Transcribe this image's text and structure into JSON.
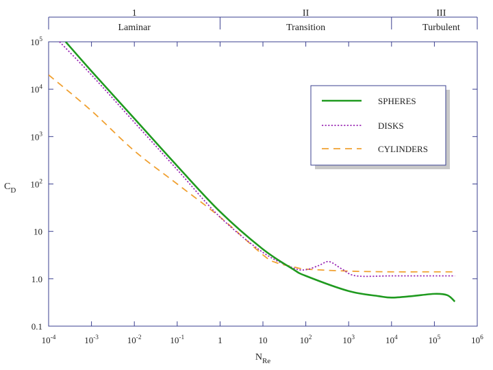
{
  "chart_data": {
    "type": "line",
    "x_scale": "log",
    "y_scale": "log",
    "xlabel": {
      "main": "N",
      "sub": "Re"
    },
    "ylabel": {
      "main": "C",
      "sub": "D"
    },
    "xlim": [
      0.0001,
      1000000
    ],
    "ylim": [
      0.1,
      100000
    ],
    "x_ticks": [
      {
        "base": "10",
        "sup": "-4"
      },
      {
        "base": "10",
        "sup": "-3"
      },
      {
        "base": "10",
        "sup": "-2"
      },
      {
        "base": "10",
        "sup": "-1"
      },
      {
        "base": "1",
        "sup": ""
      },
      {
        "base": "10",
        "sup": ""
      },
      {
        "base": "10",
        "sup": "2"
      },
      {
        "base": "10",
        "sup": "3"
      },
      {
        "base": "10",
        "sup": "4"
      },
      {
        "base": "10",
        "sup": "5"
      },
      {
        "base": "10",
        "sup": "6"
      }
    ],
    "y_ticks": [
      {
        "base": "0.1",
        "sup": ""
      },
      {
        "base": "1.0",
        "sup": ""
      },
      {
        "base": "10",
        "sup": ""
      },
      {
        "base": "10",
        "sup": "2"
      },
      {
        "base": "10",
        "sup": "3"
      },
      {
        "base": "10",
        "sup": "4"
      },
      {
        "base": "10",
        "sup": "5"
      }
    ],
    "regions": [
      {
        "numeral": "1",
        "name": "Laminar",
        "from": 0.0001,
        "to": 1
      },
      {
        "numeral": "II",
        "name": "Transition",
        "from": 1,
        "to": 10000
      },
      {
        "numeral": "III",
        "name": "Turbulent",
        "from": 10000,
        "to": 1000000
      }
    ],
    "legend_position": "top-right",
    "series": [
      {
        "name": "SPHERES",
        "color": "#1f9a1f",
        "style": "solid",
        "points": [
          [
            0.00025,
            100000
          ],
          [
            0.001,
            24000
          ],
          [
            0.01,
            2400
          ],
          [
            0.1,
            240
          ],
          [
            1,
            26
          ],
          [
            10,
            4.2
          ],
          [
            50,
            1.6
          ],
          [
            100,
            1.15
          ],
          [
            1000,
            0.55
          ],
          [
            5000,
            0.43
          ],
          [
            10000,
            0.4
          ],
          [
            30000,
            0.43
          ],
          [
            100000,
            0.48
          ],
          [
            200000,
            0.45
          ],
          [
            300000,
            0.33
          ]
        ]
      },
      {
        "name": "DISKS",
        "color": "#9b2bb5",
        "style": "dotted",
        "points": [
          [
            0.00018,
            100000
          ],
          [
            0.001,
            20000
          ],
          [
            0.01,
            2000
          ],
          [
            0.1,
            200
          ],
          [
            1,
            20
          ],
          [
            10,
            3.6
          ],
          [
            50,
            1.7
          ],
          [
            100,
            1.55
          ],
          [
            200,
            1.9
          ],
          [
            350,
            2.3
          ],
          [
            700,
            1.6
          ],
          [
            1500,
            1.15
          ],
          [
            10000,
            1.15
          ],
          [
            100000,
            1.15
          ],
          [
            300000,
            1.15
          ]
        ]
      },
      {
        "name": "CYLINDERS",
        "color": "#f0a030",
        "style": "dashed",
        "points": [
          [
            0.0001,
            20000
          ],
          [
            0.001,
            3500
          ],
          [
            0.01,
            500
          ],
          [
            0.1,
            100
          ],
          [
            1,
            20
          ],
          [
            10,
            3.2
          ],
          [
            20,
            2.2
          ],
          [
            50,
            1.8
          ],
          [
            100,
            1.6
          ],
          [
            1000,
            1.45
          ],
          [
            10000,
            1.4
          ],
          [
            100000,
            1.4
          ],
          [
            300000,
            1.4
          ]
        ]
      }
    ]
  }
}
